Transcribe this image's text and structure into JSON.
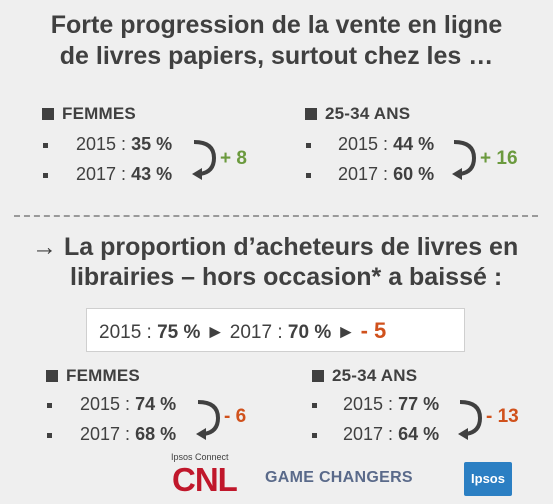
{
  "title_line1": "Forte progression de la vente en ligne",
  "title_line2": "de livres papiers, surtout chez les …",
  "top": {
    "left": {
      "header": "FEMMES",
      "rows": [
        {
          "year": "2015 :",
          "value": "35 %"
        },
        {
          "year": "2017 :",
          "value": "43 %"
        }
      ],
      "delta": "+ 8"
    },
    "right": {
      "header": "25-34 ANS",
      "rows": [
        {
          "year": "2015 :",
          "value": "44 %"
        },
        {
          "year": "2017 :",
          "value": "60 %"
        }
      ],
      "delta": "+ 16"
    }
  },
  "arrow_glyph": "→",
  "headline_line1": "La proportion d’acheteurs de livres en",
  "headline_line2": "librairies – hors occasion* a baissé :",
  "box": {
    "year1": "2015 :",
    "value1": "75 %",
    "tri": "►",
    "year2": "2017 :",
    "value2": "70 %",
    "delta": "- 5"
  },
  "bottom": {
    "left": {
      "header": "FEMMES",
      "rows": [
        {
          "year": "2015 :",
          "value": "74 %"
        },
        {
          "year": "2017 :",
          "value": "68 %"
        }
      ],
      "delta": "- 6"
    },
    "right": {
      "header": "25-34 ANS",
      "rows": [
        {
          "year": "2015 :",
          "value": "77 %"
        },
        {
          "year": "2017 :",
          "value": "64 %"
        }
      ],
      "delta": "- 13"
    }
  },
  "footer": {
    "ipsos_connect": "Ipsos Connect",
    "cnl": "CNL",
    "game_changers": "GAME CHANGERS",
    "ipsos": "Ipsos"
  },
  "colors": {
    "text": "#404040",
    "increase": "#6b9a3e",
    "decrease": "#d0511c"
  }
}
